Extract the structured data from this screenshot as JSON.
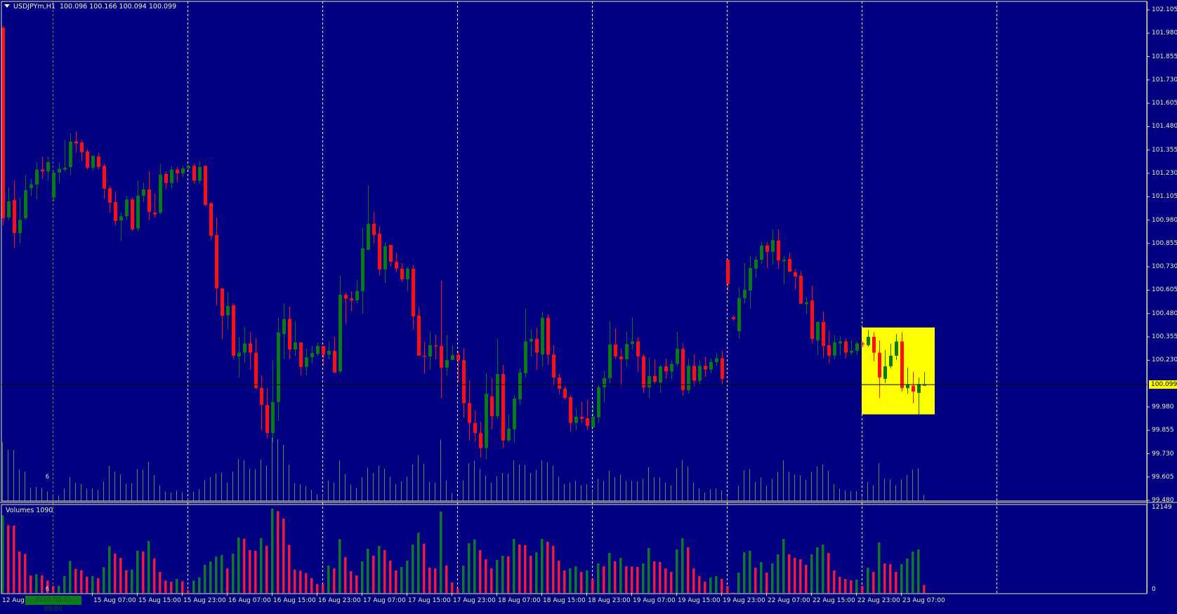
{
  "header": {
    "symbol": "USDJPYm,H1",
    "ohlc": "100.096 100.166 100.094 100.099"
  },
  "volume_pane": {
    "label": "Volumes 1090",
    "max_label": "12149",
    "min_label": "0"
  },
  "time_axis": {
    "first_label": "12 Aug",
    "cursor_label": "2016.08.15 00:00",
    "labels": [
      "15 Aug 07:00",
      "15 Aug 15:00",
      "15 Aug 23:00",
      "16 Aug 07:00",
      "16 Aug 15:00",
      "16 Aug 23:00",
      "17 Aug 07:00",
      "17 Aug 15:00",
      "17 Aug 23:00",
      "18 Aug 07:00",
      "18 Aug 15:00",
      "18 Aug 23:00",
      "19 Aug 07:00",
      "19 Aug 15:00",
      "19 Aug 23:00",
      "22 Aug 07:00",
      "22 Aug 15:00",
      "22 Aug 23:00",
      "23 Aug 07:00"
    ]
  },
  "price_axis": {
    "labels": [
      "102.105",
      "101.980",
      "101.855",
      "101.730",
      "101.605",
      "101.480",
      "101.355",
      "101.230",
      "101.105",
      "100.980",
      "100.855",
      "100.730",
      "100.605",
      "100.480",
      "100.355",
      "100.230",
      "100.099",
      "99.980",
      "99.855",
      "99.730",
      "99.605",
      "99.480"
    ],
    "current_price": "100.099"
  },
  "colors": {
    "background": "#000080",
    "bull": "#0a7a12",
    "bear": "#ff1010",
    "volume_up": "#0f7a2a",
    "volume_down": "#ee1a3c",
    "chart_volume": "#5c8c52",
    "text": "#f0f0c0",
    "highlight_box": "#ffff00",
    "price_line": "#000000"
  },
  "chart_data": {
    "type": "candlestick",
    "symbol": "USDJPYm",
    "timeframe": "H1",
    "ylim": [
      99.48,
      102.105
    ],
    "volume_ylim": [
      0,
      12149
    ],
    "current_price": 100.099,
    "highlight_zone": {
      "price_from": 99.94,
      "price_to": 100.405
    },
    "ohlc": [
      [
        102.01,
        102.02,
        100.95,
        100.99
      ],
      [
        100.994,
        101.155,
        100.98,
        101.08
      ],
      [
        101.087,
        101.19,
        100.83,
        100.91
      ],
      [
        100.91,
        101.1,
        100.855,
        100.98
      ],
      [
        100.99,
        101.22,
        100.98,
        101.14
      ],
      [
        101.15,
        101.2,
        101.11,
        101.17
      ],
      [
        101.17,
        101.29,
        101.09,
        101.25
      ],
      [
        101.25,
        101.32,
        101.2,
        101.24
      ],
      [
        101.24,
        101.32,
        101.19,
        101.29
      ],
      [
        101.1,
        101.24,
        101.08,
        101.234
      ],
      [
        101.234,
        101.29,
        101.175,
        101.253
      ],
      [
        101.25,
        101.41,
        101.24,
        101.26
      ],
      [
        101.264,
        101.445,
        101.22,
        101.4
      ],
      [
        101.4,
        101.455,
        101.34,
        101.39
      ],
      [
        101.395,
        101.41,
        101.294,
        101.343
      ],
      [
        101.347,
        101.36,
        101.25,
        101.26
      ],
      [
        101.26,
        101.324,
        101.245,
        101.324
      ],
      [
        101.32,
        101.34,
        101.25,
        101.264
      ],
      [
        101.27,
        101.28,
        101.095,
        101.148
      ],
      [
        101.15,
        101.163,
        101.02,
        101.073
      ],
      [
        101.076,
        101.13,
        100.95,
        100.975
      ],
      [
        100.978,
        101.02,
        100.87,
        101.0
      ],
      [
        101.0,
        101.11,
        100.98,
        101.09
      ],
      [
        101.09,
        101.1,
        100.92,
        100.93
      ],
      [
        100.935,
        101.19,
        100.92,
        101.11
      ],
      [
        101.11,
        101.18,
        101.075,
        101.144
      ],
      [
        101.144,
        101.24,
        100.98,
        101.024
      ],
      [
        101.02,
        101.12,
        100.995,
        101.01
      ],
      [
        101.02,
        101.28,
        101.01,
        101.223
      ],
      [
        101.226,
        101.24,
        101.144,
        101.178
      ],
      [
        101.178,
        101.268,
        101.15,
        101.25
      ],
      [
        101.25,
        101.264,
        101.18,
        101.23
      ],
      [
        101.23,
        101.27,
        101.21,
        101.256
      ],
      [
        101.256,
        101.275,
        101.245,
        101.27
      ],
      [
        101.27,
        101.283,
        101.175,
        101.19
      ],
      [
        101.19,
        101.294,
        101.175,
        101.264
      ],
      [
        101.27,
        101.27,
        101.057,
        101.06
      ],
      [
        101.07,
        101.076,
        100.873,
        100.896
      ],
      [
        100.9,
        100.994,
        100.524,
        100.614
      ],
      [
        100.614,
        100.614,
        100.344,
        100.468
      ],
      [
        100.47,
        100.596,
        100.393,
        100.52
      ],
      [
        100.524,
        100.535,
        100.231,
        100.254
      ],
      [
        100.25,
        100.355,
        100.137,
        100.27
      ],
      [
        100.27,
        100.408,
        100.216,
        100.32
      ],
      [
        100.32,
        100.38,
        100.18,
        100.27
      ],
      [
        100.27,
        100.348,
        100.074,
        100.081
      ],
      [
        100.081,
        100.149,
        99.856,
        99.991
      ],
      [
        99.99,
        100.08,
        99.81,
        99.84
      ],
      [
        99.84,
        100.23,
        99.79,
        100.006
      ],
      [
        100.006,
        100.457,
        99.904,
        100.378
      ],
      [
        100.37,
        100.532,
        100.235,
        100.45
      ],
      [
        100.45,
        100.517,
        100.235,
        100.287
      ],
      [
        100.287,
        100.438,
        100.253,
        100.325
      ],
      [
        100.325,
        100.325,
        100.149,
        100.194
      ],
      [
        100.194,
        100.291,
        100.149,
        100.246
      ],
      [
        100.246,
        100.306,
        100.212,
        100.268
      ],
      [
        100.264,
        100.325,
        100.253,
        100.306
      ],
      [
        100.306,
        100.306,
        100.2,
        100.26
      ],
      [
        100.26,
        100.33,
        100.235,
        100.28
      ],
      [
        100.28,
        100.355,
        100.16,
        100.164
      ],
      [
        100.17,
        100.682,
        100.16,
        100.58
      ],
      [
        100.58,
        100.592,
        100.423,
        100.56
      ],
      [
        100.56,
        100.6,
        100.494,
        100.55
      ],
      [
        100.55,
        100.66,
        100.535,
        100.6
      ],
      [
        100.6,
        100.937,
        100.479,
        100.828
      ],
      [
        100.82,
        101.166,
        100.82,
        100.96
      ],
      [
        100.96,
        101.024,
        100.855,
        100.9
      ],
      [
        100.907,
        100.945,
        100.682,
        100.716
      ],
      [
        100.716,
        100.862,
        100.644,
        100.84
      ],
      [
        100.847,
        100.847,
        100.731,
        100.757
      ],
      [
        100.757,
        100.806,
        100.7,
        100.72
      ],
      [
        100.72,
        100.75,
        100.648,
        100.663
      ],
      [
        100.663,
        100.73,
        100.6,
        100.72
      ],
      [
        100.72,
        100.74,
        100.393,
        100.464
      ],
      [
        100.468,
        100.513,
        100.254,
        100.254
      ],
      [
        100.254,
        100.33,
        100.156,
        100.25
      ],
      [
        100.25,
        100.385,
        100.18,
        100.31
      ],
      [
        100.31,
        100.366,
        100.235,
        100.306
      ],
      [
        100.306,
        100.655,
        100.028,
        100.19
      ],
      [
        100.19,
        100.366,
        100.149,
        100.231
      ],
      [
        100.231,
        100.306,
        100.231,
        100.257
      ],
      [
        100.26,
        100.28,
        100.111,
        100.23
      ],
      [
        100.23,
        100.291,
        99.923,
        100.0
      ],
      [
        100.0,
        100.122,
        99.8,
        99.894
      ],
      [
        99.894,
        99.96,
        99.792,
        99.84
      ],
      [
        99.84,
        99.9,
        99.71,
        99.76
      ],
      [
        99.76,
        100.16,
        99.7,
        100.05
      ],
      [
        100.036,
        100.137,
        99.86,
        99.93
      ],
      [
        99.93,
        100.344,
        99.916,
        100.156
      ],
      [
        100.156,
        100.205,
        99.76,
        99.8
      ],
      [
        99.8,
        99.94,
        99.79,
        99.863
      ],
      [
        99.86,
        100.044,
        99.79,
        100.025
      ],
      [
        100.02,
        100.186,
        99.99,
        100.164
      ],
      [
        100.16,
        100.505,
        100.137,
        100.33
      ],
      [
        100.33,
        100.393,
        100.25,
        100.344
      ],
      [
        100.344,
        100.404,
        100.18,
        100.27
      ],
      [
        100.26,
        100.487,
        100.197,
        100.457
      ],
      [
        100.457,
        100.475,
        100.205,
        100.26
      ],
      [
        100.26,
        100.31,
        100.092,
        100.137
      ],
      [
        100.137,
        100.156,
        100.047,
        100.077
      ],
      [
        100.077,
        100.092,
        100.017,
        100.028
      ],
      [
        100.032,
        100.043,
        99.848,
        99.894
      ],
      [
        99.894,
        99.972,
        99.856,
        99.927
      ],
      [
        99.927,
        100.006,
        99.894,
        99.916
      ],
      [
        99.92,
        100.017,
        99.856,
        99.878
      ],
      [
        99.87,
        100.006,
        99.867,
        99.927
      ],
      [
        99.925,
        100.104,
        99.897,
        100.085
      ],
      [
        100.085,
        100.171,
        100.006,
        100.134
      ],
      [
        100.134,
        100.438,
        100.104,
        100.314
      ],
      [
        100.314,
        100.4,
        100.235,
        100.25
      ],
      [
        100.25,
        100.291,
        100.092,
        100.235
      ],
      [
        100.235,
        100.381,
        100.194,
        100.317
      ],
      [
        100.317,
        100.457,
        100.287,
        100.33
      ],
      [
        100.33,
        100.355,
        100.167,
        100.25
      ],
      [
        100.25,
        100.261,
        100.055,
        100.085
      ],
      [
        100.085,
        100.242,
        100.028,
        100.145
      ],
      [
        100.145,
        100.235,
        100.104,
        100.115
      ],
      [
        100.11,
        100.205,
        100.055,
        100.197
      ],
      [
        100.197,
        100.239,
        100.13,
        100.17
      ],
      [
        100.17,
        100.23,
        100.13,
        100.21
      ],
      [
        100.21,
        100.381,
        100.197,
        100.291
      ],
      [
        100.29,
        100.32,
        100.04,
        100.07
      ],
      [
        100.07,
        100.24,
        100.05,
        100.2
      ],
      [
        100.2,
        100.26,
        100.09,
        100.12
      ],
      [
        100.12,
        100.23,
        100.1,
        100.2
      ],
      [
        100.2,
        100.25,
        100.14,
        100.18
      ],
      [
        100.18,
        100.24,
        100.16,
        100.22
      ],
      [
        100.22,
        100.27,
        100.2,
        100.24
      ],
      [
        100.24,
        100.28,
        100.1,
        100.13
      ],
      [
        100.768,
        100.768,
        100.6,
        100.637
      ],
      [
        100.46,
        100.47,
        100.44,
        100.45
      ],
      [
        100.385,
        100.618,
        100.344,
        100.562
      ],
      [
        100.562,
        100.75,
        100.532,
        100.607
      ],
      [
        100.603,
        100.787,
        100.506,
        100.723
      ],
      [
        100.72,
        100.787,
        100.674,
        100.768
      ],
      [
        100.768,
        100.862,
        100.745,
        100.843
      ],
      [
        100.843,
        100.862,
        100.723,
        100.81
      ],
      [
        100.81,
        100.93,
        100.742,
        100.873
      ],
      [
        100.87,
        100.93,
        100.72,
        100.764
      ],
      [
        100.76,
        100.787,
        100.637,
        100.768
      ],
      [
        100.772,
        100.806,
        100.7,
        100.704
      ],
      [
        100.7,
        100.72,
        100.607,
        100.678
      ],
      [
        100.682,
        100.708,
        100.532,
        100.532
      ],
      [
        100.53,
        100.569,
        100.479,
        100.54
      ],
      [
        100.55,
        100.63,
        100.318,
        100.344
      ],
      [
        100.337,
        100.438,
        100.257,
        100.434
      ],
      [
        100.434,
        100.49,
        100.242,
        100.306
      ],
      [
        100.31,
        100.39,
        100.212,
        100.254
      ],
      [
        100.254,
        100.363,
        100.235,
        100.325
      ],
      [
        100.32,
        100.36,
        100.254,
        100.33
      ],
      [
        100.33,
        100.344,
        100.239,
        100.27
      ],
      [
        100.27,
        100.336,
        100.257,
        100.28
      ],
      [
        100.28,
        100.33,
        100.257,
        100.32
      ],
      [
        100.32,
        100.33,
        100.3,
        100.314
      ],
      [
        100.31,
        100.39,
        100.302,
        100.355
      ],
      [
        100.355,
        100.38,
        100.224,
        100.27
      ],
      [
        100.27,
        100.336,
        100.028,
        100.137
      ],
      [
        100.13,
        100.284,
        100.107,
        100.197
      ],
      [
        100.197,
        100.318,
        100.186,
        100.254
      ],
      [
        100.254,
        100.37,
        100.231,
        100.33
      ],
      [
        100.33,
        100.38,
        100.062,
        100.08
      ],
      [
        100.08,
        100.19,
        100.051,
        100.1
      ],
      [
        100.093,
        100.167,
        100.0,
        100.062
      ],
      [
        100.055,
        100.137,
        99.94,
        100.1
      ],
      [
        100.096,
        100.166,
        100.094,
        100.099
      ]
    ],
    "volumes": [
      10670,
      9320,
      9256,
      5690,
      5370,
      2410,
      2570,
      2410,
      1700,
      960,
      980,
      2310,
      4400,
      3310,
      3120,
      2250,
      2310,
      2020,
      3540,
      6430,
      5400,
      4820,
      3120,
      3210,
      5790,
      5690,
      7140,
      4720,
      2890,
      1700,
      1540,
      1930,
      1610,
      390,
      1700,
      2150,
      3860,
      4340,
      4980,
      5210,
      3370,
      5400,
      7620,
      7460,
      5880,
      5790,
      7550,
      6490,
      11570,
      11250,
      10220,
      6590,
      3210,
      3050,
      2730,
      2020,
      1220,
      1200,
      3760,
      3370,
      7390,
      4920,
      2990,
      2410,
      4340,
      6070,
      5110,
      6460,
      5880,
      4440,
      3090,
      3570,
      4440,
      6650,
      8290,
      6750,
      3470,
      3370,
      11180,
      3760,
      1450,
      580,
      3760,
      6850,
      7330,
      5880,
      4630,
      3370,
      4530,
      5110,
      5010,
      7420,
      6650,
      6560,
      5110,
      5590,
      7420,
      7040,
      6460,
      4440,
      3090,
      3370,
      3660,
      2890,
      3090,
      1930,
      4050,
      3660,
      5500,
      4340,
      4820,
      3660,
      3640,
      3570,
      4050,
      6170,
      4340,
      4240,
      3370,
      2890,
      5980,
      7520,
      6270,
      3370,
      2310,
      1540,
      2120,
      2310,
      1930,
      960,
      60,
      2800,
      5590,
      5790,
      3470,
      4240,
      2800,
      4050,
      5300,
      7420,
      5300,
      4820,
      4630,
      3860,
      5300,
      6270,
      6650,
      5500,
      3090,
      2220,
      1930,
      1740,
      1830,
      960,
      3470,
      2890,
      6940,
      4050,
      3950,
      2890,
      3950,
      4720,
      5690,
      5980,
      1090
    ]
  }
}
